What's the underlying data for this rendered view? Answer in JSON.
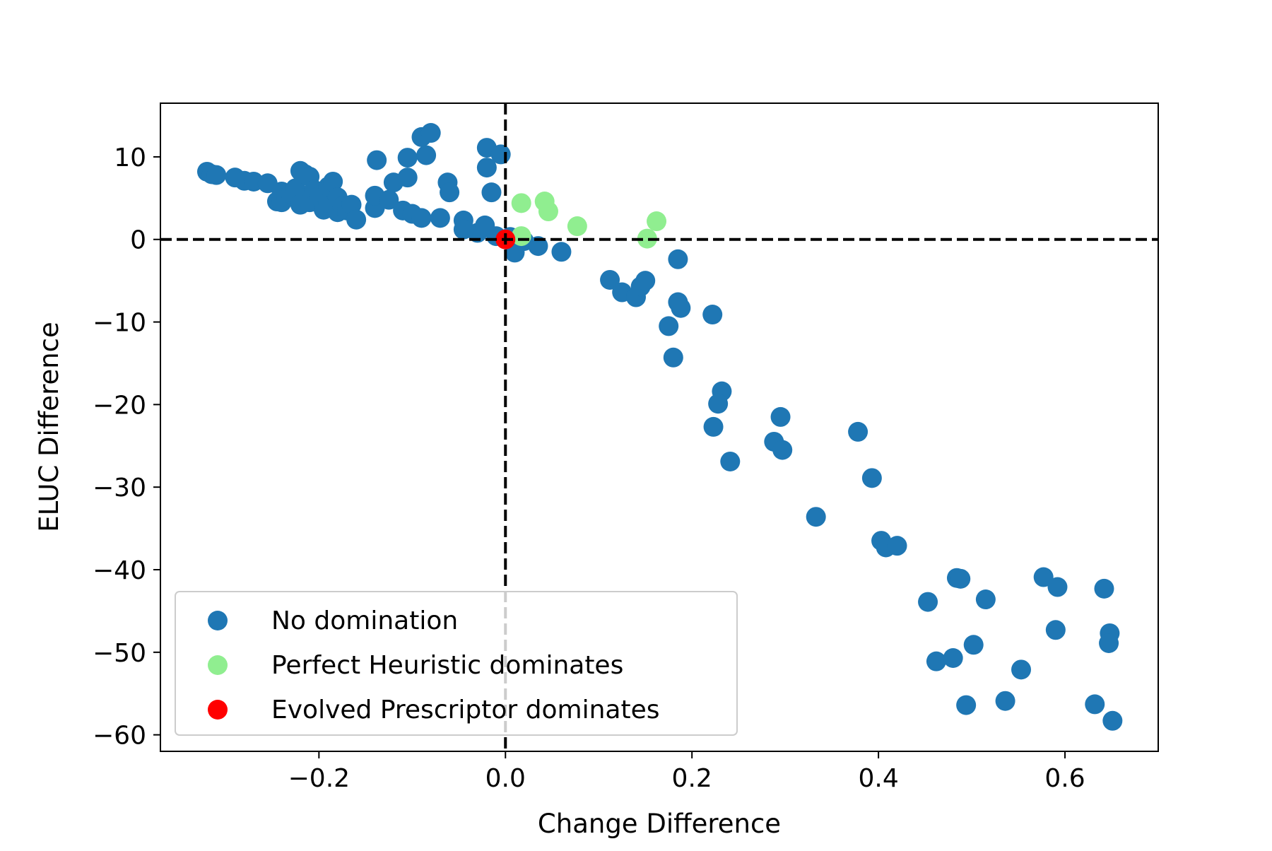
{
  "chart_data": {
    "type": "scatter",
    "title": "",
    "xlabel": "Change Difference",
    "ylabel": "ELUC Difference",
    "xlim": [
      -0.37,
      0.7
    ],
    "ylim": [
      -62,
      16.5
    ],
    "xticks": [
      {
        "value": -0.2,
        "label": "−0.2"
      },
      {
        "value": 0.0,
        "label": "0.0"
      },
      {
        "value": 0.2,
        "label": "0.2"
      },
      {
        "value": 0.4,
        "label": "0.4"
      },
      {
        "value": 0.6,
        "label": "0.6"
      }
    ],
    "yticks": [
      {
        "value": 10,
        "label": "10"
      },
      {
        "value": 0,
        "label": "0"
      },
      {
        "value": -10,
        "label": "−10"
      },
      {
        "value": -20,
        "label": "−20"
      },
      {
        "value": -30,
        "label": "−30"
      },
      {
        "value": -40,
        "label": "−40"
      },
      {
        "value": -50,
        "label": "−50"
      },
      {
        "value": -60,
        "label": "−60"
      }
    ],
    "grid": false,
    "reference_lines": {
      "x": 0,
      "y": 0,
      "style": "dashed",
      "color": "#000000"
    },
    "legend_position": "lower-left",
    "series": [
      {
        "name": "No domination",
        "color": "#1f77b4",
        "points": [
          [
            -0.32,
            8.2
          ],
          [
            -0.315,
            7.9
          ],
          [
            -0.31,
            7.8
          ],
          [
            -0.29,
            7.5
          ],
          [
            -0.28,
            7.1
          ],
          [
            -0.27,
            7.0
          ],
          [
            -0.255,
            6.8
          ],
          [
            -0.245,
            4.6
          ],
          [
            -0.24,
            4.5
          ],
          [
            -0.24,
            5.8
          ],
          [
            -0.235,
            5.1
          ],
          [
            -0.23,
            5.5
          ],
          [
            -0.225,
            6.2
          ],
          [
            -0.22,
            8.3
          ],
          [
            -0.22,
            4.2
          ],
          [
            -0.215,
            7.9
          ],
          [
            -0.21,
            7.6
          ],
          [
            -0.215,
            5.0
          ],
          [
            -0.21,
            4.5
          ],
          [
            -0.205,
            6.0
          ],
          [
            -0.2,
            5.2
          ],
          [
            -0.195,
            3.6
          ],
          [
            -0.19,
            4.4
          ],
          [
            -0.19,
            6.4
          ],
          [
            -0.185,
            7.0
          ],
          [
            -0.18,
            3.3
          ],
          [
            -0.18,
            5.1
          ],
          [
            -0.175,
            4.0
          ],
          [
            -0.17,
            3.5
          ],
          [
            -0.165,
            4.2
          ],
          [
            -0.16,
            2.4
          ],
          [
            -0.14,
            3.8
          ],
          [
            -0.14,
            5.3
          ],
          [
            -0.138,
            9.6
          ],
          [
            -0.125,
            4.8
          ],
          [
            -0.12,
            6.9
          ],
          [
            -0.11,
            3.5
          ],
          [
            -0.105,
            9.9
          ],
          [
            -0.105,
            7.5
          ],
          [
            -0.1,
            3.1
          ],
          [
            -0.09,
            2.6
          ],
          [
            -0.09,
            12.4
          ],
          [
            -0.085,
            10.2
          ],
          [
            -0.08,
            12.9
          ],
          [
            -0.07,
            2.6
          ],
          [
            -0.062,
            6.9
          ],
          [
            -0.06,
            5.7
          ],
          [
            -0.045,
            2.3
          ],
          [
            -0.045,
            1.2
          ],
          [
            -0.03,
            0.8
          ],
          [
            -0.022,
            1.7
          ],
          [
            -0.02,
            8.7
          ],
          [
            -0.02,
            11.1
          ],
          [
            -0.015,
            5.7
          ],
          [
            -0.01,
            0.4
          ],
          [
            -0.005,
            10.3
          ],
          [
            0.005,
            0.3
          ],
          [
            0.01,
            -1.6
          ],
          [
            0.02,
            -0.2
          ],
          [
            0.035,
            -0.8
          ],
          [
            0.06,
            -1.5
          ],
          [
            0.112,
            -4.9
          ],
          [
            0.125,
            -6.4
          ],
          [
            0.14,
            -7.0
          ],
          [
            0.145,
            -5.7
          ],
          [
            0.15,
            -5.0
          ],
          [
            0.185,
            -2.4
          ],
          [
            0.175,
            -10.5
          ],
          [
            0.185,
            -7.6
          ],
          [
            0.188,
            -8.3
          ],
          [
            0.18,
            -14.3
          ],
          [
            0.222,
            -9.1
          ],
          [
            0.232,
            -18.4
          ],
          [
            0.228,
            -19.9
          ],
          [
            0.223,
            -22.7
          ],
          [
            0.241,
            -26.9
          ],
          [
            0.288,
            -24.5
          ],
          [
            0.295,
            -21.5
          ],
          [
            0.297,
            -25.5
          ],
          [
            0.333,
            -33.6
          ],
          [
            0.378,
            -23.3
          ],
          [
            0.393,
            -28.9
          ],
          [
            0.403,
            -36.5
          ],
          [
            0.408,
            -37.3
          ],
          [
            0.42,
            -37.1
          ],
          [
            0.453,
            -43.9
          ],
          [
            0.462,
            -51.1
          ],
          [
            0.48,
            -50.7
          ],
          [
            0.484,
            -41.0
          ],
          [
            0.488,
            -41.1
          ],
          [
            0.494,
            -56.4
          ],
          [
            0.502,
            -49.1
          ],
          [
            0.515,
            -43.6
          ],
          [
            0.536,
            -55.9
          ],
          [
            0.553,
            -52.1
          ],
          [
            0.577,
            -40.9
          ],
          [
            0.59,
            -47.3
          ],
          [
            0.592,
            -42.1
          ],
          [
            0.632,
            -56.3
          ],
          [
            0.642,
            -42.3
          ],
          [
            0.648,
            -47.7
          ],
          [
            0.647,
            -48.9
          ],
          [
            0.651,
            -58.3
          ]
        ]
      },
      {
        "name": "Perfect Heuristic dominates",
        "color": "#90ee90",
        "points": [
          [
            0.017,
            4.4
          ],
          [
            0.042,
            4.6
          ],
          [
            0.046,
            3.4
          ],
          [
            0.077,
            1.6
          ],
          [
            0.162,
            2.2
          ],
          [
            0.152,
            0.1
          ],
          [
            0.017,
            0.4
          ]
        ]
      },
      {
        "name": "Evolved Prescriptor dominates",
        "color": "#ff0000",
        "points": [
          [
            0.0,
            0.0
          ]
        ]
      }
    ]
  }
}
